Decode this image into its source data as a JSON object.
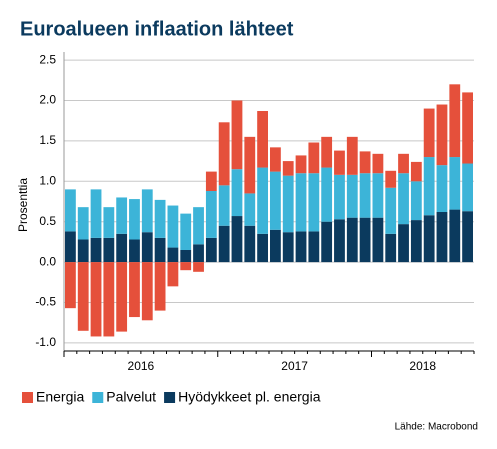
{
  "chart_data": {
    "type": "stacked_bar",
    "title": "Euroalueen inflaation lähteet",
    "y_label": "Prosenttia",
    "source": "Lähde: Macrobond",
    "categories": [
      null,
      null,
      null,
      null,
      null,
      null,
      "2016",
      null,
      null,
      null,
      null,
      null,
      null,
      null,
      null,
      null,
      null,
      null,
      "2017",
      null,
      null,
      null,
      null,
      null,
      null,
      null,
      null,
      null,
      "2018",
      null,
      null,
      null
    ],
    "series": [
      {
        "name": "Hyödykkeet pl. energia",
        "color": "#0b3a5e",
        "values": [
          0.38,
          0.28,
          0.3,
          0.3,
          0.35,
          0.28,
          0.37,
          0.3,
          0.18,
          0.15,
          0.22,
          0.3,
          0.45,
          0.57,
          0.45,
          0.35,
          0.4,
          0.37,
          0.38,
          0.38,
          0.5,
          0.53,
          0.55,
          0.55,
          0.55,
          0.35,
          0.47,
          0.52,
          0.58,
          0.62,
          0.65,
          0.63
        ]
      },
      {
        "name": "Palvelut",
        "color": "#3cb4d8",
        "values": [
          0.52,
          0.4,
          0.6,
          0.38,
          0.45,
          0.5,
          0.53,
          0.47,
          0.52,
          0.45,
          0.46,
          0.58,
          0.5,
          0.58,
          0.4,
          0.82,
          0.72,
          0.7,
          0.72,
          0.72,
          0.67,
          0.55,
          0.53,
          0.55,
          0.55,
          0.57,
          0.63,
          0.48,
          0.72,
          0.58,
          0.65,
          0.59
        ]
      },
      {
        "name": "Energia",
        "color": "#e5503b",
        "values": [
          -0.57,
          -0.85,
          -0.92,
          -0.92,
          -0.86,
          -0.68,
          -0.72,
          -0.6,
          -0.3,
          -0.1,
          -0.12,
          0.24,
          0.78,
          0.85,
          0.7,
          0.7,
          0.3,
          0.18,
          0.22,
          0.38,
          0.38,
          0.3,
          0.47,
          0.27,
          0.24,
          0.21,
          0.24,
          0.24,
          0.6,
          0.75,
          0.9,
          0.88
        ]
      }
    ],
    "legend_order": [
      "Energia",
      "Palvelut",
      "Hyödykkeet pl. energia"
    ],
    "ylim": [
      -1.1,
      2.6
    ],
    "yticks": [
      {
        "value": 2.5,
        "label": "2.5"
      },
      {
        "value": 2,
        "label": "2.0"
      },
      {
        "value": 1.5,
        "label": "1.5"
      },
      {
        "value": 1,
        "label": "1.0"
      },
      {
        "value": 0.5,
        "label": "0.5"
      },
      {
        "value": 0,
        "label": "0.0"
      },
      {
        "value": -0.5,
        "label": "-0.5"
      },
      {
        "value": -1,
        "label": "-1.0"
      }
    ],
    "grid": true
  }
}
